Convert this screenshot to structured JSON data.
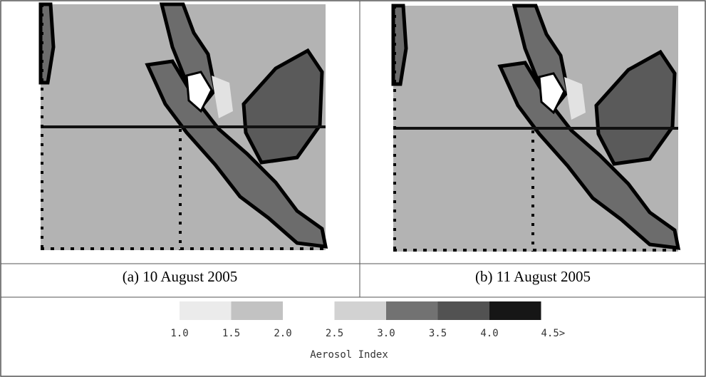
{
  "panels": [
    {
      "caption": "(a) 10 August 2005"
    },
    {
      "caption": "(b) 11 August 2005"
    }
  ],
  "legend": {
    "title": "Aerosol Index",
    "labels": [
      "1.0",
      "1.5",
      "2.0",
      "2.5",
      "3.0",
      "3.5",
      "4.0",
      "4.5>"
    ],
    "colors": [
      "#ebebeb",
      "#c2c2c2",
      "#ffffff",
      "#d2d2d2",
      "#727272",
      "#525252",
      "#161616"
    ]
  }
}
